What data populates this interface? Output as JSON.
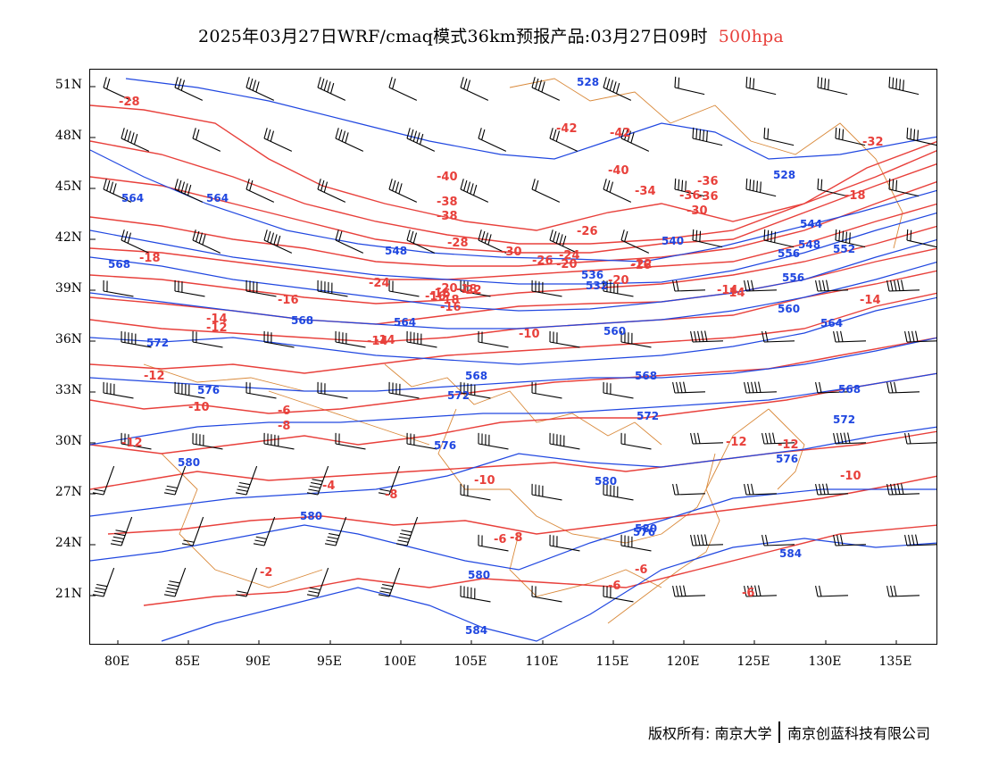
{
  "header": {
    "title": "2025年03月27日WRF/cmaq模式36km预报产品:03月27日09时",
    "level": "500hpa"
  },
  "axes": {
    "latitude_ticks": [
      "51N",
      "48N",
      "45N",
      "42N",
      "39N",
      "36N",
      "33N",
      "30N",
      "27N",
      "24N",
      "21N"
    ],
    "longitude_ticks": [
      "80E",
      "85E",
      "90E",
      "95E",
      "100E",
      "105E",
      "110E",
      "115E",
      "120E",
      "125E",
      "130E",
      "135E"
    ]
  },
  "colors": {
    "temperature": "#e8403b",
    "geopotential": "#2047e0",
    "coastline": "#d9893a",
    "wind": "#000000"
  },
  "temperature_labels": [
    "-28",
    "-42",
    "-42",
    "-40",
    "-40",
    "-36",
    "-36",
    "-38",
    "-32",
    "-38",
    "-36",
    "-34",
    "-30",
    "-28",
    "-26",
    "-24",
    "-22",
    "-22",
    "-20",
    "-20",
    "-18",
    "-18",
    "-16",
    "-16",
    "-16",
    "-14",
    "-14",
    "-14",
    "-14",
    "-14",
    "-12",
    "-12",
    "-12",
    "-12",
    "-12",
    "-10",
    "-10",
    "-10",
    "-10",
    "-8",
    "-8",
    "-8",
    "-6",
    "-6",
    "-6",
    "-6",
    "-6",
    "-4",
    "-2",
    "-18",
    "-16",
    "-14",
    "-20",
    "-18",
    "-16",
    "-24",
    "-30",
    "-26"
  ],
  "height_labels": [
    "528",
    "528",
    "532",
    "536",
    "540",
    "544",
    "548",
    "548",
    "552",
    "556",
    "560",
    "560",
    "564",
    "564",
    "564",
    "568",
    "568",
    "568",
    "568",
    "568",
    "572",
    "572",
    "572",
    "572",
    "576",
    "576",
    "576",
    "580",
    "580",
    "580",
    "580",
    "580",
    "584",
    "584",
    "576",
    "564",
    "556"
  ],
  "footer": {
    "copyright": "版权所有: 南京大学",
    "company": "南京创蓝科技有限公司"
  }
}
